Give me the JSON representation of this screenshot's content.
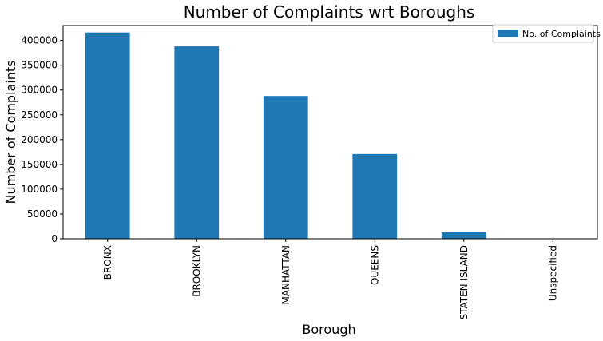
{
  "chart_data": {
    "type": "bar",
    "title": "Number of Complaints wrt Boroughs",
    "xlabel": "Borough",
    "ylabel": "Number of Complaints",
    "categories": [
      "BRONX",
      "BROOKLYN",
      "MANHATTAN",
      "QUEENS",
      "STATEN ISLAND",
      "Unspecified"
    ],
    "series": [
      {
        "name": "No. of Complaints",
        "values": [
          416000,
          388000,
          288000,
          171000,
          13000,
          0
        ],
        "color": "#1f77b4"
      }
    ],
    "ylim": [
      0,
      430000
    ],
    "yticks": [
      0,
      50000,
      100000,
      150000,
      200000,
      250000,
      300000,
      350000,
      400000
    ],
    "ytick_labels": [
      "0",
      "50000",
      "100000",
      "150000",
      "200000",
      "250000",
      "300000",
      "350000",
      "400000"
    ],
    "grid": false,
    "legend_position": "top-right"
  }
}
